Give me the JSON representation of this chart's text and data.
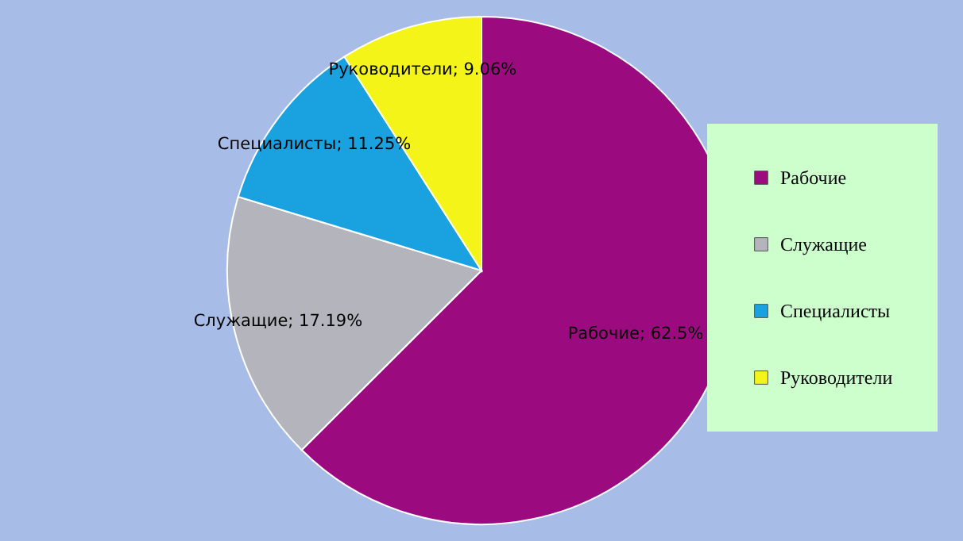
{
  "chart_data": {
    "type": "pie",
    "categories": [
      "Рабочие",
      "Служащие",
      "Специалисты",
      "Руководители"
    ],
    "values": [
      62.5,
      17.19,
      11.25,
      9.06
    ],
    "colors": [
      "#9c0a80",
      "#b4b4bc",
      "#1aa2e0",
      "#f4f418"
    ],
    "value_labels": [
      "Рабочие; 62.5%",
      "Служащие; 17.19%",
      "Специалисты; 11.25%",
      "Руководители; 9.06%"
    ],
    "legend": "right"
  }
}
